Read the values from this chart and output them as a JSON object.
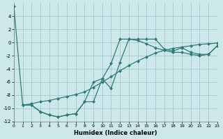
{
  "xlabel": "Humidex (Indice chaleur)",
  "background_color": "#cce8ea",
  "line_color": "#2e7d72",
  "grid_color": "#aacdd0",
  "xlim": [
    0,
    23
  ],
  "ylim": [
    -12,
    6
  ],
  "xticks": [
    0,
    1,
    2,
    3,
    4,
    5,
    6,
    7,
    8,
    9,
    10,
    11,
    12,
    13,
    14,
    15,
    16,
    17,
    18,
    19,
    20,
    21,
    22,
    23
  ],
  "yticks": [
    -12,
    -10,
    -8,
    -6,
    -4,
    -2,
    0,
    2,
    4
  ],
  "line1_x": [
    0,
    1,
    2,
    3,
    4,
    5,
    6,
    7,
    8,
    9,
    10,
    11,
    12,
    13,
    14,
    15,
    16,
    17,
    18,
    19,
    20,
    21,
    22,
    23
  ],
  "line1_y": [
    5.5,
    -9.5,
    -9.5,
    -10.5,
    -11.0,
    -11.3,
    -11.0,
    -10.8,
    -9.0,
    -9.0,
    -5.5,
    -7.0,
    -3.0,
    0.5,
    0.5,
    0.5,
    0.5,
    -1.0,
    -1.3,
    -0.8,
    -1.5,
    -1.8,
    -1.8,
    -0.5
  ],
  "line2_x": [
    1,
    2,
    3,
    4,
    5,
    6,
    7,
    8,
    9,
    10,
    11,
    12,
    13,
    14,
    15,
    16,
    17,
    18,
    19,
    20,
    21,
    22,
    23
  ],
  "line2_y": [
    -9.5,
    -9.5,
    -10.5,
    -11.0,
    -11.3,
    -11.0,
    -10.8,
    -9.0,
    -6.0,
    -5.5,
    -3.2,
    0.5,
    0.5,
    0.3,
    -0.2,
    -0.8,
    -1.2,
    -1.5,
    -1.5,
    -1.8,
    -2.0,
    -1.8,
    -0.5
  ],
  "line3_x": [
    1,
    2,
    3,
    4,
    5,
    6,
    7,
    8,
    9,
    10,
    11,
    12,
    13,
    14,
    15,
    16,
    17,
    18,
    19,
    20,
    21,
    22,
    23
  ],
  "line3_y": [
    -9.5,
    -9.3,
    -9.0,
    -8.8,
    -8.5,
    -8.2,
    -7.9,
    -7.5,
    -6.8,
    -6.0,
    -5.2,
    -4.3,
    -3.5,
    -2.8,
    -2.2,
    -1.6,
    -1.2,
    -0.9,
    -0.7,
    -0.5,
    -0.3,
    -0.2,
    -0.1
  ]
}
